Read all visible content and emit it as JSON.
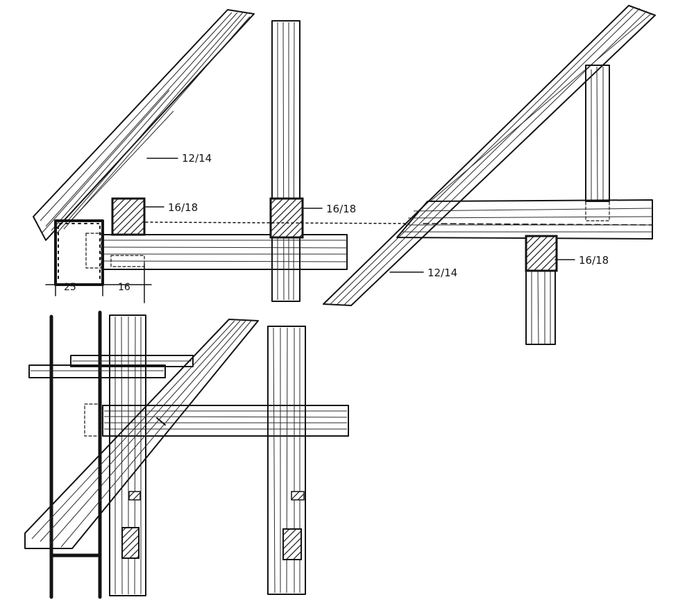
{
  "drawing": {
    "label_rafter_top_left": "12/14",
    "label_post_left": "16/18",
    "label_post_middle": "16/18",
    "label_rafter_right": "12/14",
    "label_post_right": "16/18",
    "dim_wall": "25",
    "dim_post": "16",
    "ink_color": "#141414"
  }
}
